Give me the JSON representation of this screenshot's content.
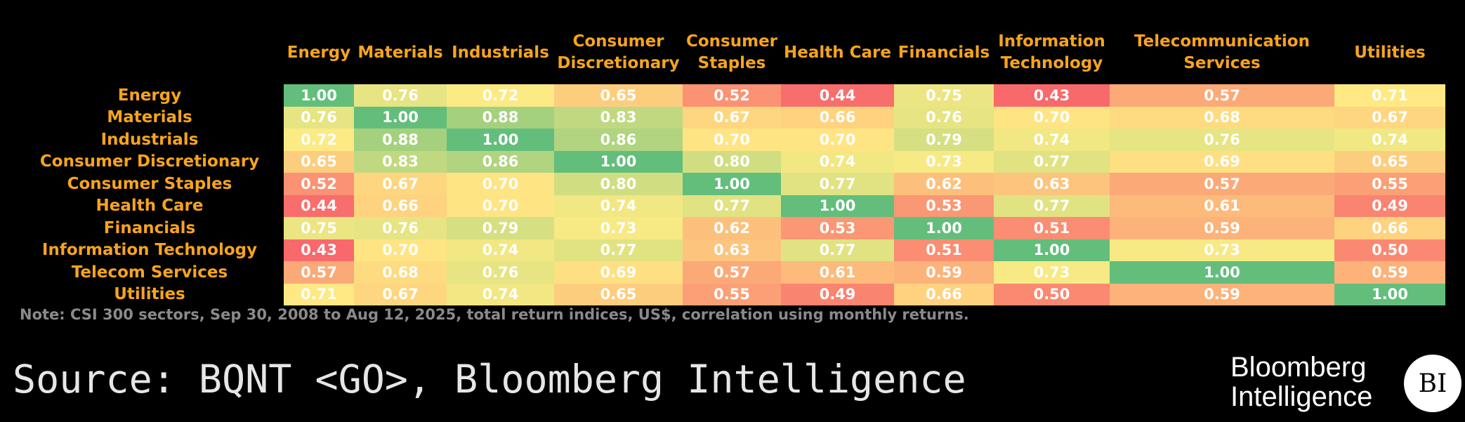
{
  "chart_data": {
    "type": "heatmap",
    "columns": [
      [
        "Energy"
      ],
      [
        "Materials"
      ],
      [
        "Industrials"
      ],
      [
        "Consumer",
        "Discretionary"
      ],
      [
        "Consumer",
        "Staples"
      ],
      [
        "Health Care"
      ],
      [
        "Financials"
      ],
      [
        "Information",
        "Technology"
      ],
      [
        "Telecommunication",
        "Services"
      ],
      [
        "Utilities"
      ]
    ],
    "rows": [
      "Energy",
      "Materials",
      "Industrials",
      "Consumer Discretionary",
      "Consumer Staples",
      "Health Care",
      "Financials",
      "Information Technology",
      "Telecom Services",
      "Utilities"
    ],
    "values": [
      [
        1.0,
        0.76,
        0.72,
        0.65,
        0.52,
        0.44,
        0.75,
        0.43,
        0.57,
        0.71
      ],
      [
        0.76,
        1.0,
        0.88,
        0.83,
        0.67,
        0.66,
        0.76,
        0.7,
        0.68,
        0.67
      ],
      [
        0.72,
        0.88,
        1.0,
        0.86,
        0.7,
        0.7,
        0.79,
        0.74,
        0.76,
        0.74
      ],
      [
        0.65,
        0.83,
        0.86,
        1.0,
        0.8,
        0.74,
        0.73,
        0.77,
        0.69,
        0.65
      ],
      [
        0.52,
        0.67,
        0.7,
        0.8,
        1.0,
        0.77,
        0.62,
        0.63,
        0.57,
        0.55
      ],
      [
        0.44,
        0.66,
        0.7,
        0.74,
        0.77,
        1.0,
        0.53,
        0.77,
        0.61,
        0.49
      ],
      [
        0.75,
        0.76,
        0.79,
        0.73,
        0.62,
        0.53,
        1.0,
        0.51,
        0.59,
        0.66
      ],
      [
        0.43,
        0.7,
        0.74,
        0.77,
        0.63,
        0.77,
        0.51,
        1.0,
        0.73,
        0.5
      ],
      [
        0.57,
        0.68,
        0.76,
        0.69,
        0.57,
        0.61,
        0.59,
        0.73,
        1.0,
        0.59
      ],
      [
        0.71,
        0.67,
        0.74,
        0.65,
        0.55,
        0.49,
        0.66,
        0.5,
        0.59,
        1.0
      ]
    ],
    "color_scale": {
      "low": "#F8696B",
      "mid": "#FFEB84",
      "high": "#63BE7B"
    },
    "note": "Note: CSI 300 sectors, Sep 30, 2008 to Aug 12, 2025, total return indices, US$, correlation using monthly returns."
  },
  "footer": {
    "source": "Source: BQNT <GO>, Bloomberg Intelligence",
    "logo_line1": "Bloomberg",
    "logo_line2": "Intelligence",
    "logo_badge": "BI"
  }
}
